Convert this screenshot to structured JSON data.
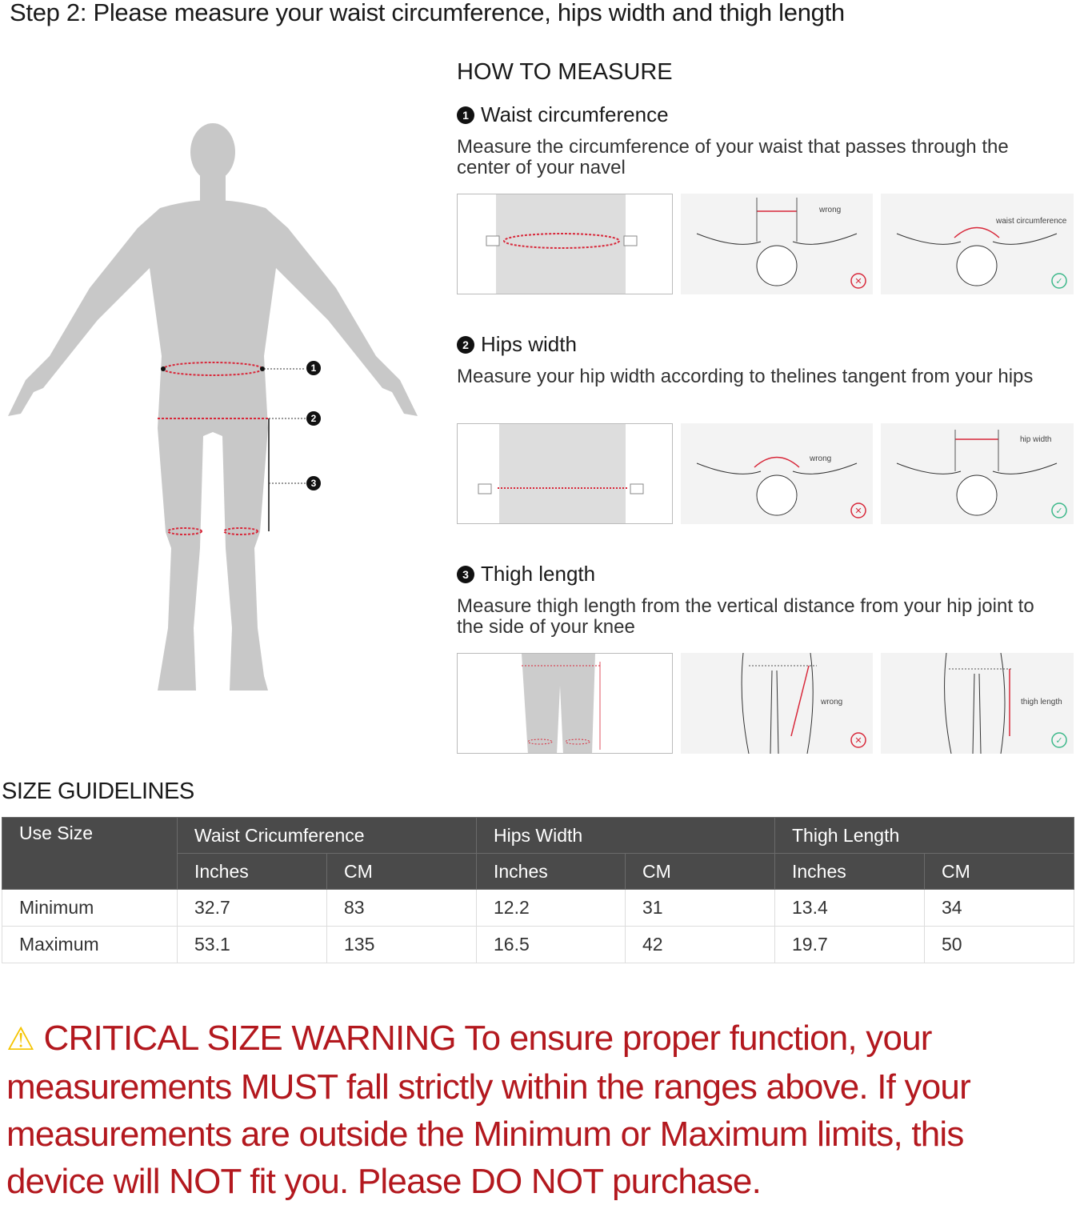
{
  "title": "Step 2: Please measure your waist circumference, hips width and thigh length",
  "how_to": "HOW TO MEASURE",
  "sections": [
    {
      "num": "1",
      "heading": "Waist circumference",
      "desc": "Measure the circumference of your waist that passes through the center of your navel",
      "wrong_label": "wrong",
      "right_label": "waist circumference"
    },
    {
      "num": "2",
      "heading": "Hips width",
      "desc": "Measure your hip width according to thelines tangent from your hips",
      "wrong_label": "wrong",
      "right_label": "hip width"
    },
    {
      "num": "3",
      "heading": "Thigh length",
      "desc": "Measure thigh length from the vertical distance from your hip joint to the side of your knee",
      "wrong_label": "wrong",
      "right_label": "thigh length"
    }
  ],
  "figure_markers": [
    "1",
    "2",
    "3"
  ],
  "size_guidelines": {
    "title": "SIZE GUIDELINES",
    "headers": {
      "use_size": "Use Size",
      "groups": [
        "Waist Cricumference",
        "Hips Width",
        "Thigh Length"
      ],
      "units": [
        "Inches",
        "CM",
        "Inches",
        "CM",
        "Inches",
        "CM"
      ]
    },
    "rows": [
      {
        "label": "Minimum",
        "values": [
          "32.7",
          "83",
          "12.2",
          "31",
          "13.4",
          "34"
        ]
      },
      {
        "label": "Maximum",
        "values": [
          "53.1",
          "135",
          "16.5",
          "42",
          "19.7",
          "50"
        ]
      }
    ]
  },
  "warning": {
    "icon": "warning-triangle-icon",
    "text": "CRITICAL SIZE WARNING To ensure proper function, your measurements MUST fall strictly within the ranges above. If your measurements are outside the Minimum or Maximum limits, this device will NOT fit you. Please DO NOT purchase."
  },
  "colors": {
    "accent_red": "#d8283a",
    "warning_red": "#b3181e",
    "ok_green": "#3cb88a",
    "header_bg": "#4a4a4a",
    "silhouette": "#c8c8c8"
  }
}
